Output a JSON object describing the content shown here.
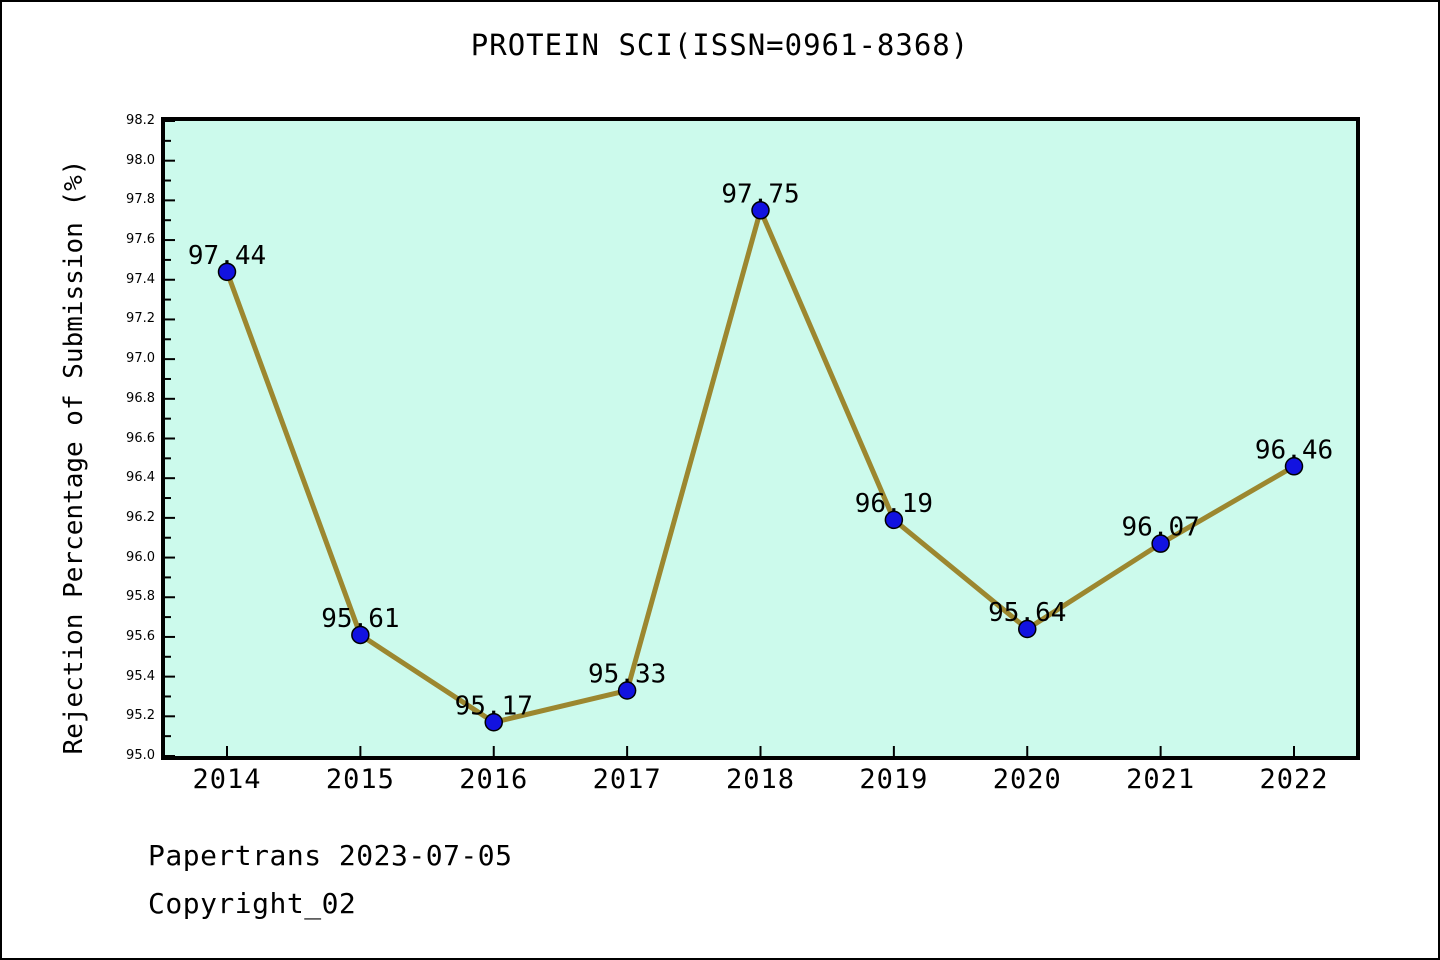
{
  "chart_data": {
    "type": "line",
    "title": "PROTEIN SCI(ISSN=0961-8368)",
    "ylabel": "Rejection Percentage of Submission (%)",
    "xlabel": "",
    "categories": [
      2014,
      2015,
      2016,
      2017,
      2018,
      2019,
      2020,
      2021,
      2022
    ],
    "series": [
      {
        "name": "Rejection Percentage of Submission",
        "values": [
          97.44,
          95.61,
          95.17,
          95.33,
          97.75,
          96.19,
          95.64,
          96.07,
          96.46
        ]
      }
    ],
    "ylim": [
      95.0,
      98.2
    ],
    "ytick_major_step": 0.2,
    "ytick_minor_step": 0.1,
    "grid": false,
    "legend_position": "none",
    "point_labels_visible": true,
    "colors": {
      "plot_background": "#CCFAEC",
      "line": "#9C872F",
      "marker_fill": "#1212E0",
      "marker_edge": "#000000",
      "text": "#000000",
      "frame": "#000000"
    }
  },
  "footer": {
    "line1": "Papertrans 2023-07-05",
    "line2": "Copyright_02"
  }
}
